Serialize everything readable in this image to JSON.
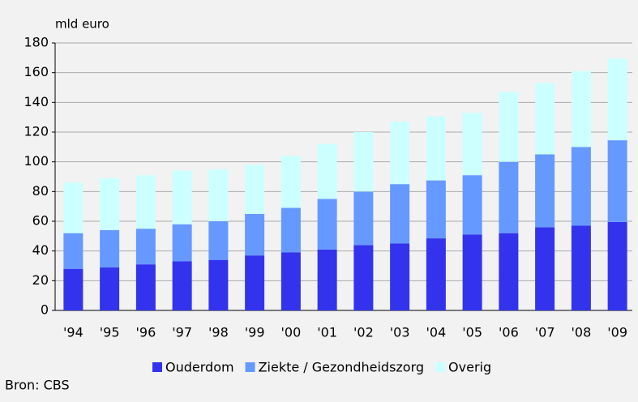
{
  "chart_data": {
    "type": "stacked_bar",
    "y_axis_label": "mld euro",
    "source": "Bron: CBS",
    "categories": [
      "'94",
      "'95",
      "'96",
      "'97",
      "'98",
      "'99",
      "'00",
      "'01",
      "'02",
      "'03",
      "'04",
      "'05",
      "'06",
      "'07",
      "'08",
      "'09"
    ],
    "series": [
      {
        "name": "Ouderdom",
        "color": "#3333ee",
        "values": [
          28,
          29,
          31,
          33,
          34,
          37,
          39,
          41,
          44,
          45,
          48.5,
          51,
          52,
          56,
          57,
          59.5
        ]
      },
      {
        "name": "Ziekte / Gezondheidszorg",
        "color": "#6699ff",
        "values": [
          24,
          25,
          24,
          25,
          26,
          28,
          30,
          34,
          36,
          40,
          39,
          40,
          48,
          49,
          53,
          55
        ]
      },
      {
        "name": "Overig",
        "color": "#ccffff",
        "values": [
          34,
          35,
          36,
          36,
          35,
          33,
          35,
          37,
          40,
          42,
          43,
          42,
          47,
          48,
          51,
          55
        ]
      }
    ],
    "ylim": [
      0,
      180
    ],
    "yticks": [
      0,
      20,
      40,
      60,
      80,
      100,
      120,
      140,
      160,
      180
    ],
    "grid": true,
    "legend": "bottom"
  }
}
